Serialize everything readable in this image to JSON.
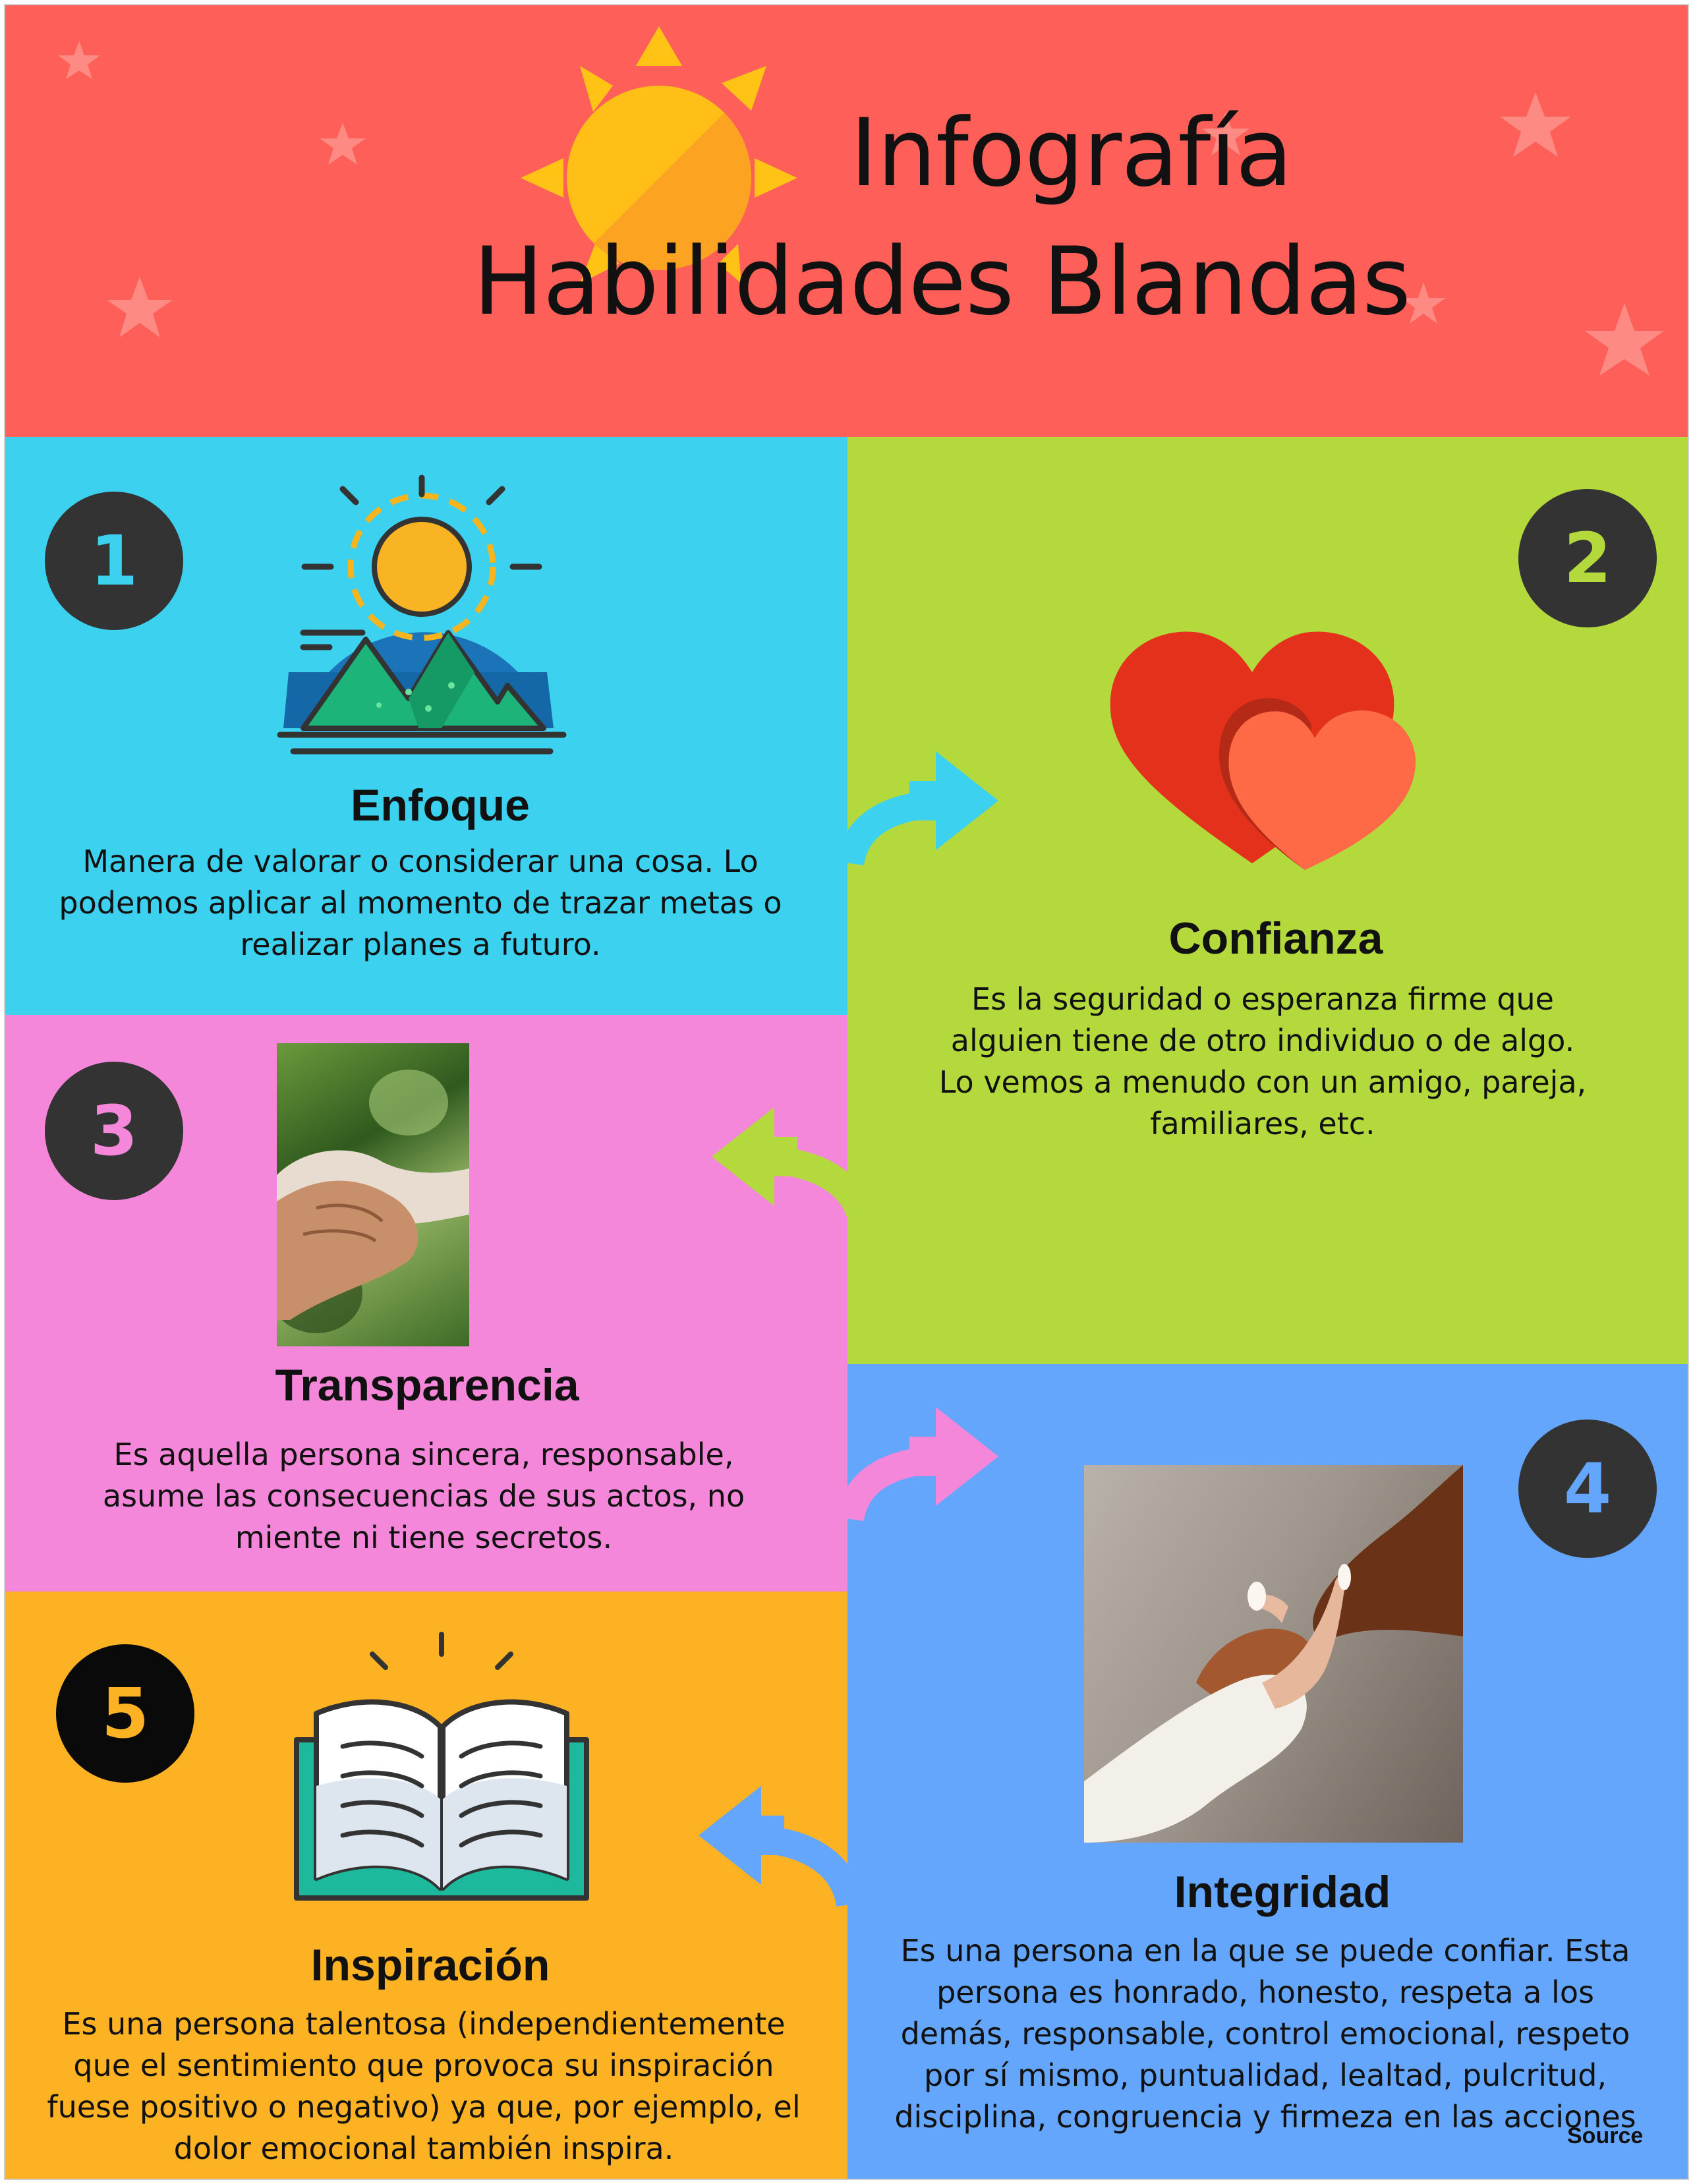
{
  "header": {
    "title_line1": "Infografía",
    "title_line2": "Habilidades Blandas"
  },
  "colors": {
    "header": "#fe5f58",
    "enfoque": "#3cd1ef",
    "confianza": "#b3d93d",
    "transparencia": "#f587db",
    "integridad": "#64a6fc",
    "inspiracion": "#fdb224",
    "badge": "#333333"
  },
  "sections": [
    {
      "number": "1",
      "title": "Enfoque",
      "text_lines": [
        "Manera de valorar o considerar una cosa. Lo",
        "podemos aplicar al momento de trazar metas o",
        "realizar planes a futuro."
      ],
      "icon": "sunrise-mountain-icon"
    },
    {
      "number": "2",
      "title": "Confianza",
      "text_lines": [
        "Es la seguridad o esperanza firme que",
        "alguien tiene de otro individuo o de algo.",
        "Lo vemos a menudo con un amigo, pareja,",
        "familiares, etc."
      ],
      "icon": "two-hearts-icon"
    },
    {
      "number": "3",
      "title": "Transparencia",
      "text_lines": [
        "Es aquella persona sincera, responsable,",
        "asume las consecuencias de sus actos, no",
        "miente ni tiene secretos."
      ],
      "icon": "holding-hands-photo"
    },
    {
      "number": "4",
      "title": "Integridad",
      "text_lines": [
        "Es una persona en la que se puede confiar. Esta",
        "persona es  honrado, honesto, respeta a los",
        "demás, responsable, control emocional, respeto",
        "por sí mismo, puntualidad, lealtad, pulcritud,",
        "disciplina, congruencia y firmeza en las acciones"
      ],
      "icon": "hand-and-paw-photo"
    },
    {
      "number": "5",
      "title": "Inspiración",
      "text_lines": [
        "Es una persona talentosa (independientemente",
        "que el sentimiento que provoca su inspiración",
        "fuese positivo o negativo) ya que, por ejemplo, el",
        "dolor emocional también inspira."
      ],
      "icon": "open-book-icon"
    }
  ],
  "footer": {
    "source_label": "Source"
  }
}
